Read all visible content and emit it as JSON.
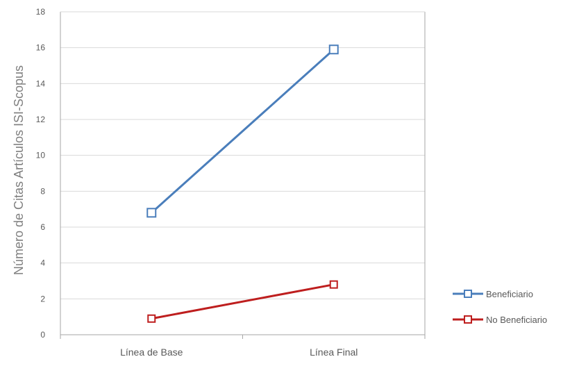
{
  "chart_data": {
    "type": "line",
    "title": "",
    "xlabel": "",
    "ylabel": "Número de Citas Artículos ISI-Scopus",
    "categories": [
      "Línea de Base",
      "Línea Final"
    ],
    "ylim": [
      0,
      18
    ],
    "yticks": [
      0,
      2,
      4,
      6,
      8,
      10,
      12,
      14,
      16,
      18
    ],
    "grid": true,
    "legend_position": "right",
    "series": [
      {
        "name": "Beneficiario",
        "values": [
          6.8,
          15.9
        ],
        "color": "#4a7ebb",
        "marker": "square"
      },
      {
        "name": "No Beneficiario",
        "values": [
          0.9,
          2.8
        ],
        "color": "#be1e1e",
        "marker": "square"
      }
    ]
  }
}
